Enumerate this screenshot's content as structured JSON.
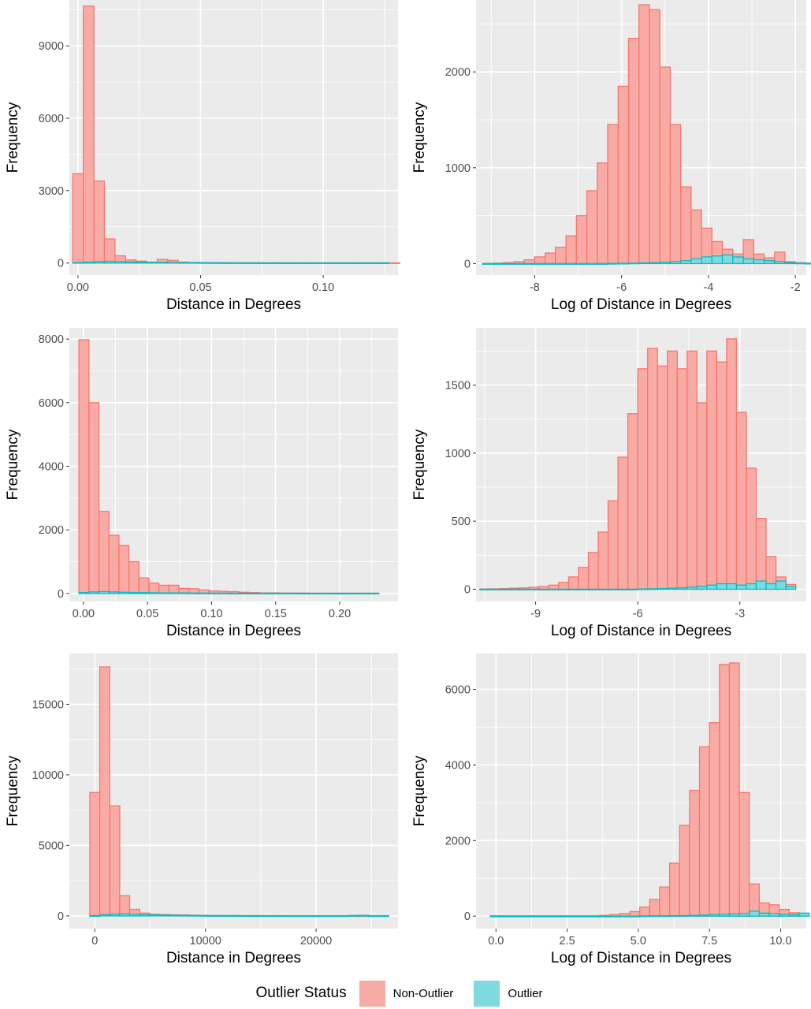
{
  "legend": {
    "title": "Outlier Status",
    "items": [
      {
        "label": "Non-Outlier",
        "fill": "#f8aba5",
        "stroke": "#f8766d"
      },
      {
        "label": "Outlier",
        "fill": "#7fdadf",
        "stroke": "#00bfc4"
      }
    ]
  },
  "colors": {
    "panel_background": "#ebebeb",
    "grid": "#ffffff",
    "non_outlier_fill": "#f8aba5",
    "non_outlier_stroke": "#f8766d",
    "outlier_fill": "#7fdadf",
    "outlier_stroke": "#00bfc4"
  },
  "chart_data": [
    {
      "type": "bar",
      "histogram": true,
      "xlabel": "Distance in Degrees",
      "ylabel": "Frequency",
      "xlim": [
        -0.0035,
        0.1305
      ],
      "ylim": [
        -500,
        10900
      ],
      "xticks": [
        0,
        0.05,
        0.1
      ],
      "xtick_labels": [
        "0.00",
        "0.05",
        "0.10"
      ],
      "yticks": [
        0,
        3000,
        6000,
        9000
      ],
      "ytick_labels": [
        "0",
        "3000",
        "6000",
        "9000"
      ],
      "bin_start": -0.0021,
      "bin_width": 0.0043,
      "series": [
        {
          "name": "Non-Outlier",
          "values": [
            3700,
            10650,
            3400,
            1000,
            300,
            130,
            80,
            40,
            150,
            110,
            40,
            25,
            20,
            15,
            10,
            10,
            10,
            8,
            8,
            8,
            8,
            8,
            8,
            8,
            8,
            8,
            8,
            8,
            8,
            8,
            8
          ]
        },
        {
          "name": "Outlier",
          "values": [
            20,
            40,
            60,
            70,
            60,
            50,
            40,
            30,
            30,
            25,
            20,
            20,
            15,
            15,
            12,
            12,
            10,
            10,
            10,
            10,
            8,
            8,
            8,
            8,
            8,
            8,
            8,
            8,
            8,
            8
          ]
        }
      ]
    },
    {
      "type": "bar",
      "histogram": true,
      "xlabel": "Log of Distance in Degrees",
      "ylabel": "Frequency",
      "xlim": [
        -9.35,
        -1.75
      ],
      "ylim": [
        -120,
        2750
      ],
      "xticks": [
        -8,
        -6,
        -4,
        -2
      ],
      "xtick_labels": [
        "-8",
        "-6",
        "-4",
        "-2"
      ],
      "yticks": [
        0,
        1000,
        2000
      ],
      "ytick_labels": [
        "0",
        "1000",
        "2000"
      ],
      "bin_start": -9.2,
      "bin_width": 0.24,
      "series": [
        {
          "name": "Non-Outlier",
          "values": [
            3,
            5,
            10,
            20,
            40,
            70,
            110,
            170,
            290,
            500,
            760,
            1050,
            1450,
            1850,
            2350,
            2700,
            2650,
            2050,
            1450,
            800,
            560,
            370,
            230,
            150,
            100,
            250,
            100,
            60,
            120,
            20,
            10,
            5
          ]
        },
        {
          "name": "Outlier",
          "values": [
            0,
            0,
            0,
            0,
            0,
            0,
            0,
            0,
            0,
            0,
            0,
            0,
            2,
            3,
            5,
            8,
            10,
            15,
            20,
            30,
            50,
            70,
            80,
            90,
            70,
            50,
            40,
            30,
            20,
            10,
            5,
            3
          ]
        }
      ]
    },
    {
      "type": "bar",
      "histogram": true,
      "xlabel": "Distance in Degrees",
      "ylabel": "Frequency",
      "xlim": [
        -0.011,
        0.2455
      ],
      "ylim": [
        -250,
        8350
      ],
      "xticks": [
        0,
        0.05,
        0.1,
        0.15,
        0.2
      ],
      "xtick_labels": [
        "0.00",
        "0.05",
        "0.10",
        "0.15",
        "0.20"
      ],
      "yticks": [
        0,
        2000,
        4000,
        6000,
        8000
      ],
      "ytick_labels": [
        "0",
        "2000",
        "4000",
        "6000",
        "8000"
      ],
      "bin_start": -0.0035,
      "bin_width": 0.0078,
      "series": [
        {
          "name": "Non-Outlier",
          "values": [
            7980,
            6000,
            2580,
            1830,
            1510,
            1000,
            490,
            330,
            260,
            260,
            160,
            150,
            110,
            80,
            70,
            60,
            40,
            30,
            20,
            20,
            15,
            15,
            15,
            10,
            10,
            10,
            10,
            10,
            10,
            10
          ]
        },
        {
          "name": "Outlier",
          "values": [
            30,
            50,
            60,
            50,
            40,
            35,
            30,
            25,
            20,
            20,
            18,
            15,
            15,
            12,
            12,
            10,
            10,
            10,
            10,
            10,
            10,
            10,
            8,
            8,
            8,
            8,
            8,
            8,
            8,
            8
          ]
        }
      ]
    },
    {
      "type": "bar",
      "histogram": true,
      "xlabel": "Log of Distance in Degrees",
      "ylabel": "Frequency",
      "xlim": [
        -10.75,
        -1.05
      ],
      "ylim": [
        -90,
        1920
      ],
      "xticks": [
        -9,
        -6,
        -3
      ],
      "xtick_labels": [
        "-9",
        "-6",
        "-3"
      ],
      "yticks": [
        0,
        500,
        1000,
        1500
      ],
      "ytick_labels": [
        "0",
        "500",
        "1000",
        "1500"
      ],
      "bin_start": -10.64,
      "bin_width": 0.29,
      "series": [
        {
          "name": "Non-Outlier",
          "values": [
            2,
            3,
            5,
            8,
            10,
            15,
            20,
            30,
            50,
            90,
            160,
            270,
            420,
            650,
            970,
            1290,
            1620,
            1770,
            1640,
            1750,
            1620,
            1750,
            1370,
            1750,
            1670,
            1840,
            1300,
            890,
            520,
            240,
            90,
            35
          ]
        },
        {
          "name": "Outlier",
          "values": [
            0,
            0,
            0,
            0,
            0,
            0,
            0,
            0,
            0,
            0,
            0,
            0,
            0,
            0,
            0,
            0,
            2,
            3,
            5,
            8,
            10,
            15,
            20,
            30,
            40,
            40,
            30,
            40,
            60,
            40,
            60,
            20
          ]
        }
      ]
    },
    {
      "type": "bar",
      "histogram": true,
      "xlabel": "Distance in Degrees",
      "ylabel": "Frequency",
      "xlim": [
        -2300,
        27400
      ],
      "ylim": [
        -900,
        18600
      ],
      "xticks": [
        0,
        10000,
        20000
      ],
      "xtick_labels": [
        "0",
        "10000",
        "20000"
      ],
      "yticks": [
        0,
        5000,
        10000,
        15000
      ],
      "ytick_labels": [
        "0",
        "5000",
        "10000",
        "15000"
      ],
      "bin_start": -450,
      "bin_width": 900,
      "series": [
        {
          "name": "Non-Outlier",
          "values": [
            8750,
            17650,
            7800,
            1430,
            470,
            200,
            120,
            100,
            80,
            70,
            50,
            40,
            30,
            30,
            25,
            20,
            20,
            15,
            15,
            15,
            10,
            10,
            10,
            10,
            10,
            10,
            10,
            10,
            10,
            10
          ]
        },
        {
          "name": "Outlier",
          "values": [
            20,
            80,
            120,
            150,
            120,
            100,
            80,
            60,
            50,
            40,
            35,
            30,
            25,
            20,
            20,
            15,
            15,
            15,
            10,
            10,
            10,
            10,
            10,
            10,
            10,
            10,
            30,
            40,
            10,
            10
          ]
        }
      ]
    },
    {
      "type": "bar",
      "histogram": true,
      "xlabel": "Log of Distance in Degrees",
      "ylabel": "Frequency",
      "xlim": [
        -0.7,
        10.9
      ],
      "ylim": [
        -330,
        6950
      ],
      "xticks": [
        0,
        2.5,
        5,
        7.5,
        10
      ],
      "xtick_labels": [
        "0.0",
        "2.5",
        "5.0",
        "7.5",
        "10.0"
      ],
      "yticks": [
        0,
        2000,
        4000,
        6000
      ],
      "ytick_labels": [
        "0",
        "2000",
        "4000",
        "6000"
      ],
      "bin_start": -0.2,
      "bin_width": 0.35,
      "series": [
        {
          "name": "Non-Outlier",
          "values": [
            10,
            10,
            10,
            10,
            10,
            10,
            10,
            10,
            10,
            10,
            10,
            20,
            40,
            70,
            120,
            240,
            440,
            770,
            1400,
            2400,
            3330,
            4480,
            5120,
            6660,
            6700,
            3270,
            850,
            350,
            300,
            180,
            90,
            40
          ]
        },
        {
          "name": "Outlier",
          "values": [
            0,
            0,
            0,
            0,
            0,
            0,
            0,
            0,
            0,
            0,
            0,
            0,
            0,
            0,
            0,
            5,
            8,
            10,
            12,
            15,
            20,
            30,
            40,
            50,
            60,
            70,
            130,
            80,
            70,
            50,
            40,
            80
          ]
        }
      ]
    }
  ]
}
